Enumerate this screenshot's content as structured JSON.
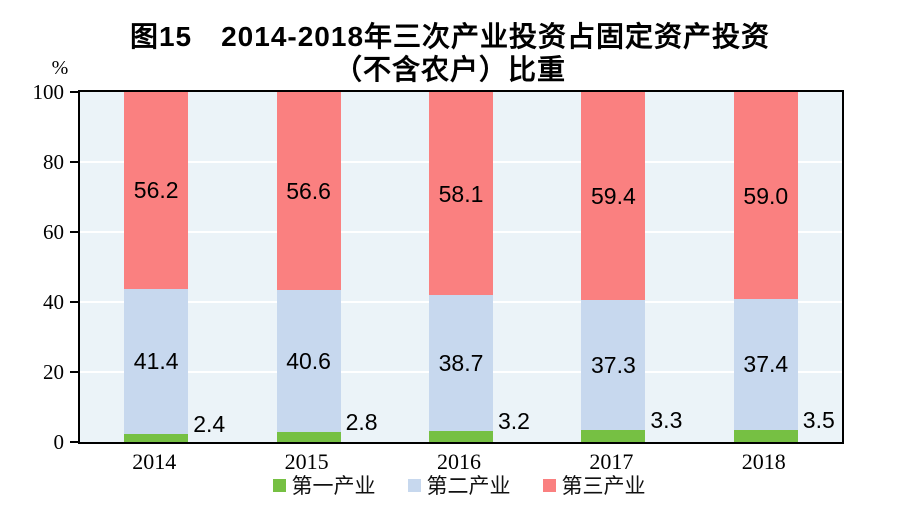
{
  "title": {
    "line1": "图15　2014-2018年三次产业投资占固定资产投资",
    "line2": "（不含农户）比重"
  },
  "y_axis_unit": "%",
  "chart_data": {
    "type": "bar",
    "stacked": true,
    "title": "图15 2014-2018年三次产业投资占固定资产投资（不含农户）比重",
    "categories": [
      "2014",
      "2015",
      "2016",
      "2017",
      "2018"
    ],
    "series": [
      {
        "name": "第一产业",
        "color": "#76c043",
        "values": [
          2.4,
          2.8,
          3.2,
          3.3,
          3.5
        ],
        "label_placement": "right-of-bar"
      },
      {
        "name": "第二产业",
        "color": "#c7d8ee",
        "values": [
          41.4,
          40.6,
          38.7,
          37.3,
          37.4
        ],
        "label_placement": "inside"
      },
      {
        "name": "第三产业",
        "color": "#fa8080",
        "values": [
          56.2,
          56.6,
          58.1,
          59.4,
          59.0
        ],
        "label_placement": "inside"
      }
    ],
    "ylabel": "%",
    "ylim": [
      0,
      100
    ],
    "yticks": [
      0,
      20,
      40,
      60,
      80,
      100
    ],
    "grid": true,
    "gridline_color": "#ffffff",
    "legend_position": "bottom"
  },
  "colors": {
    "plot_background": "#ebf3f8",
    "gridline": "#ffffff",
    "axis_border": "#000000",
    "text": "#000000"
  }
}
